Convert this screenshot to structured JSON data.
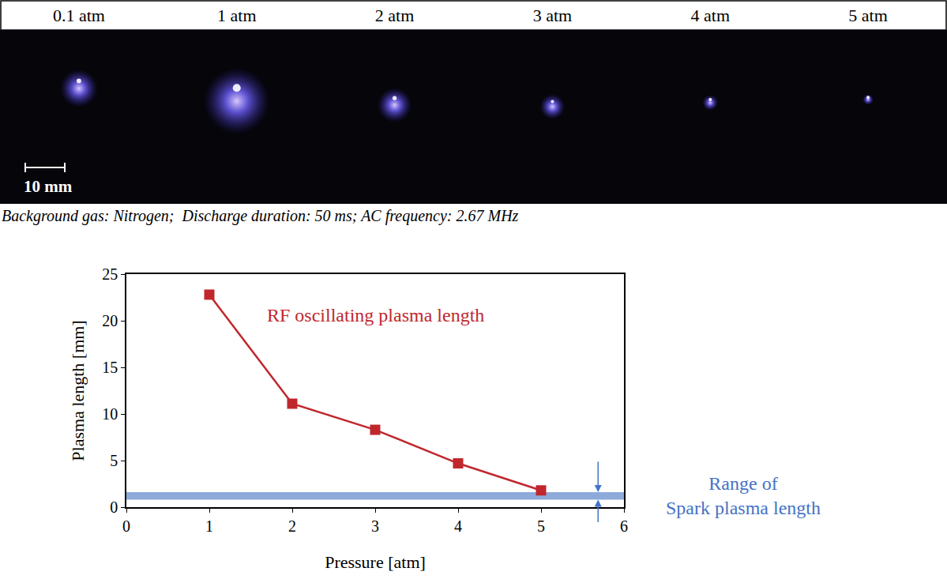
{
  "image_strip": {
    "labels": [
      "0.1 atm",
      "1 atm",
      "2 atm",
      "3 atm",
      "4 atm",
      "5 atm"
    ],
    "scale_bar": "10 mm",
    "caption": "Background gas: Nitrogen;  Discharge duration: 50 ms; AC frequency: 2.67 MHz"
  },
  "chart_data": {
    "type": "line",
    "x_label": "Pressure [atm]",
    "y_label": "Plasma length [mm]",
    "x": [
      1,
      2,
      3,
      4,
      5
    ],
    "series": [
      {
        "name": "RF oscillating plasma length",
        "color": "#c0272d",
        "marker": "square",
        "values": [
          22.8,
          11.1,
          8.3,
          4.7,
          1.8
        ]
      }
    ],
    "xlim": [
      0,
      6
    ],
    "xticks": [
      0,
      1,
      2,
      3,
      4,
      5,
      6
    ],
    "ylim": [
      0,
      25
    ],
    "yticks": [
      0,
      5,
      10,
      15,
      20,
      25
    ],
    "grid": false,
    "band": {
      "range": [
        0.8,
        1.6
      ],
      "color": "#8eaadb",
      "label": [
        "Range of",
        "Spark plasma length"
      ],
      "label_color": "#4472c4"
    }
  }
}
